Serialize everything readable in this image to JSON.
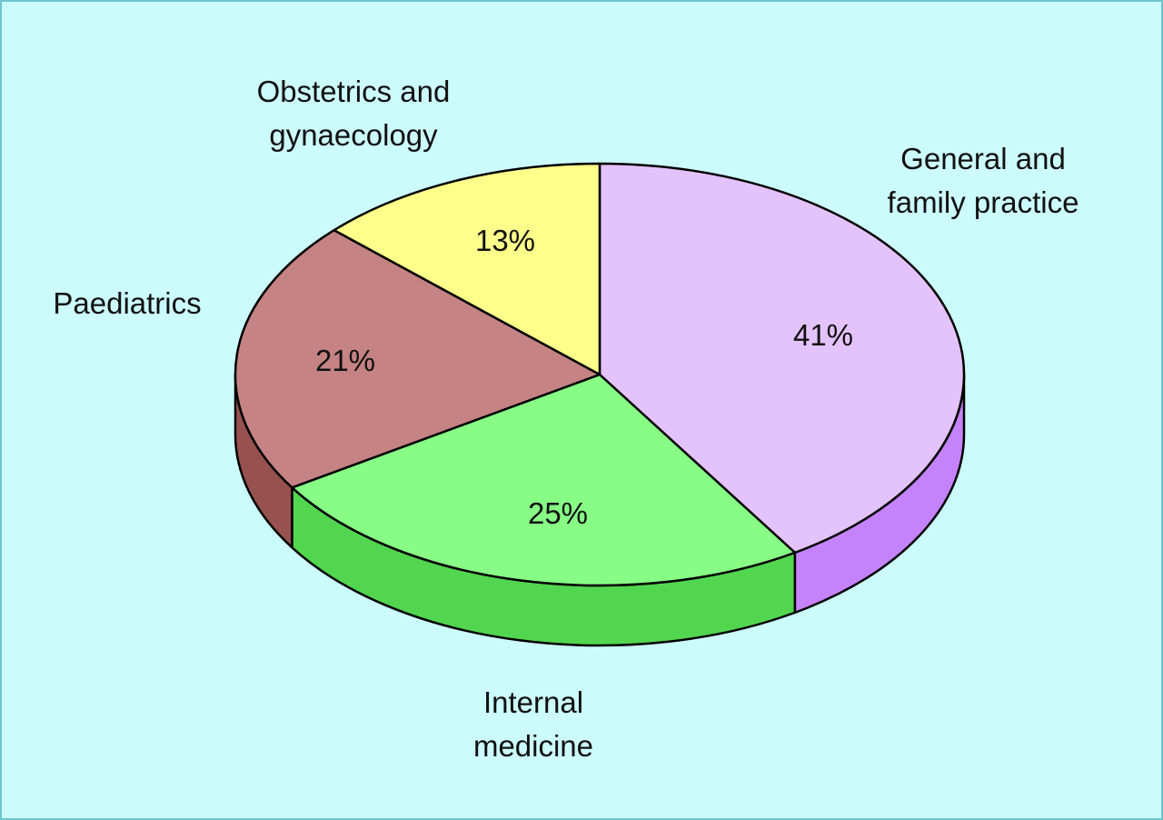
{
  "chart_data": {
    "type": "pie",
    "style": "3d",
    "slices": [
      {
        "category": [
          "General and",
          "family practice"
        ],
        "value": 41,
        "value_label": "41%",
        "top_color": "#e4c3fc",
        "side_color": "#c583fb"
      },
      {
        "category": [
          "Internal",
          "medicine"
        ],
        "value": 25,
        "value_label": "25%",
        "top_color": "#87fd85",
        "side_color": "#52d64f"
      },
      {
        "category": [
          "Paediatrics"
        ],
        "value": 21,
        "value_label": "21%",
        "top_color": "#c58383",
        "side_color": "#97514f"
      },
      {
        "category": [
          "Obstetrics and",
          "gynaecology"
        ],
        "value": 13,
        "value_label": "13%",
        "top_color": "#fefe8a",
        "side_color": "#d8d860"
      }
    ],
    "background_color": "#ccfbfb",
    "border_color": "#6fc7d0"
  }
}
